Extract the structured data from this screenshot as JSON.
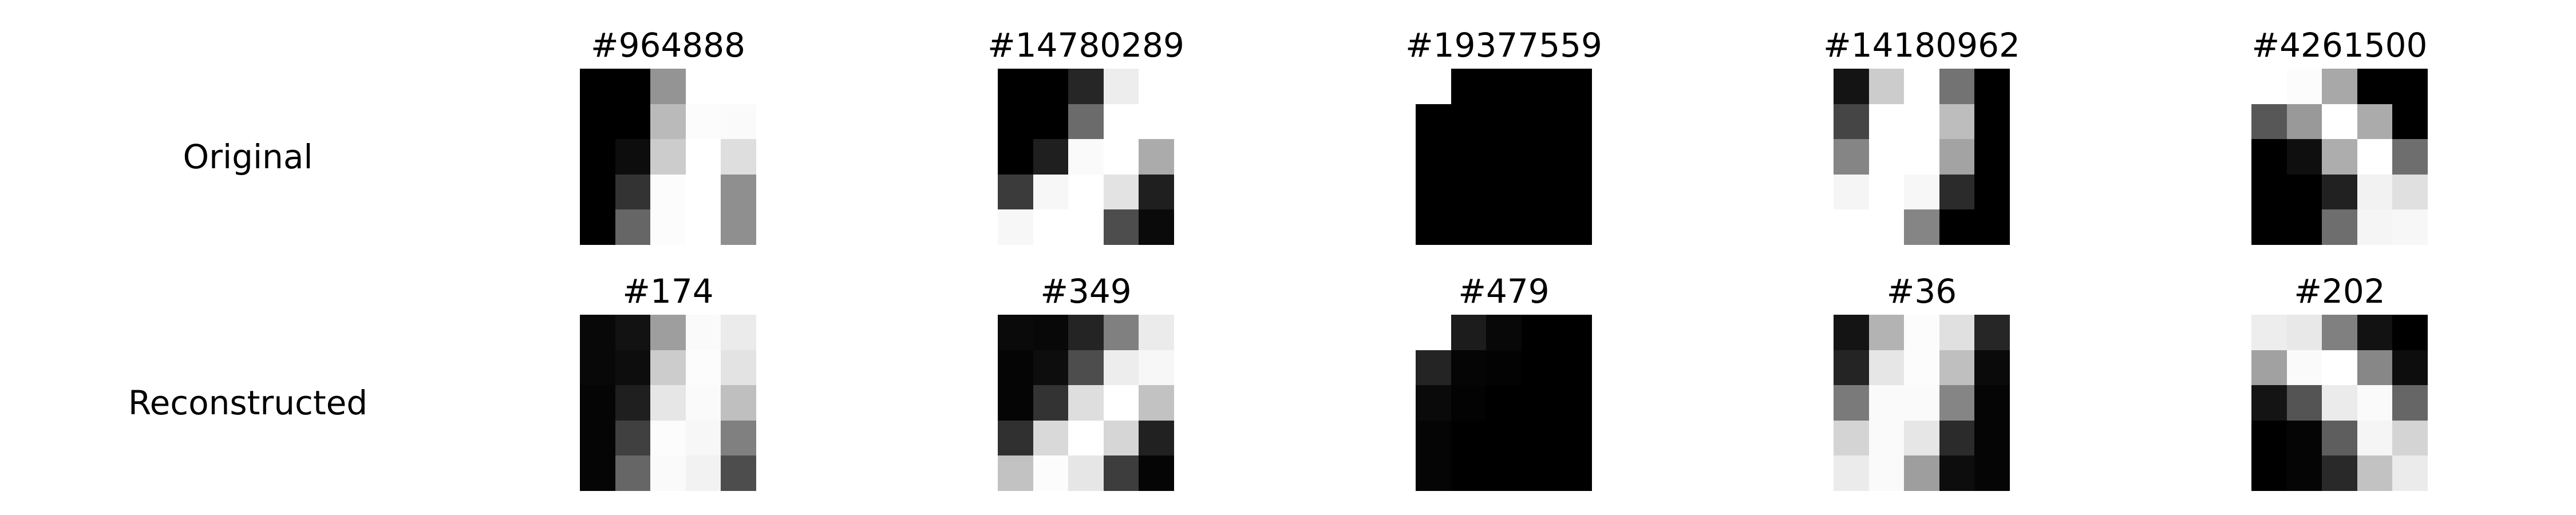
{
  "chart_data": {
    "type": "heatmap",
    "title": "",
    "row_labels": [
      "Original",
      "Reconstructed"
    ],
    "colormap": "gray",
    "value_range": [
      0,
      1
    ],
    "value_meaning": "pixel brightness, 0 = black, 1 = white",
    "grid": "off",
    "rows": [
      {
        "label": "Original",
        "panels": [
          {
            "title": "#964888",
            "pixels": [
              [
                0.0,
                0.0,
                0.58,
                1.0,
                1.0
              ],
              [
                0.0,
                0.0,
                0.73,
                0.99,
                0.98
              ],
              [
                0.0,
                0.05,
                0.8,
                1.0,
                0.87
              ],
              [
                0.0,
                0.2,
                0.99,
                1.0,
                0.56
              ],
              [
                0.0,
                0.4,
                0.99,
                1.0,
                0.56
              ]
            ]
          },
          {
            "title": "#14780289",
            "pixels": [
              [
                0.0,
                0.0,
                0.15,
                0.93,
                1.0
              ],
              [
                0.0,
                0.0,
                0.42,
                1.0,
                1.0
              ],
              [
                0.0,
                0.12,
                0.98,
                1.0,
                0.67
              ],
              [
                0.23,
                0.97,
                1.0,
                0.89,
                0.12
              ],
              [
                0.97,
                1.0,
                1.0,
                0.3,
                0.04
              ]
            ]
          },
          {
            "title": "#19377559",
            "pixels": [
              [
                1.0,
                0.0,
                0.0,
                0.0,
                0.0
              ],
              [
                0.0,
                0.0,
                0.0,
                0.0,
                0.0
              ],
              [
                0.0,
                0.0,
                0.0,
                0.0,
                0.0
              ],
              [
                0.0,
                0.0,
                0.0,
                0.0,
                0.0
              ],
              [
                0.0,
                0.0,
                0.0,
                0.0,
                0.0
              ]
            ]
          },
          {
            "title": "#14180962",
            "pixels": [
              [
                0.08,
                0.8,
                1.0,
                0.45,
                0.0
              ],
              [
                0.27,
                1.0,
                1.0,
                0.74,
                0.0
              ],
              [
                0.52,
                1.0,
                1.0,
                0.64,
                0.0
              ],
              [
                0.96,
                1.0,
                0.97,
                0.17,
                0.0
              ],
              [
                1.0,
                1.0,
                0.52,
                0.0,
                0.0
              ]
            ]
          },
          {
            "title": "#4261500",
            "pixels": [
              [
                1.0,
                0.99,
                0.66,
                0.0,
                0.0
              ],
              [
                0.34,
                0.6,
                1.0,
                0.67,
                0.0
              ],
              [
                0.0,
                0.06,
                0.68,
                1.0,
                0.43
              ],
              [
                0.0,
                0.0,
                0.13,
                0.95,
                0.88
              ],
              [
                0.0,
                0.0,
                0.43,
                0.96,
                0.97
              ]
            ]
          }
        ]
      },
      {
        "label": "Reconstructed",
        "panels": [
          {
            "title": "#174",
            "pixels": [
              [
                0.03,
                0.07,
                0.62,
                0.98,
                0.92
              ],
              [
                0.03,
                0.05,
                0.8,
                0.99,
                0.89
              ],
              [
                0.02,
                0.12,
                0.9,
                0.98,
                0.75
              ],
              [
                0.02,
                0.25,
                0.99,
                0.97,
                0.5
              ],
              [
                0.02,
                0.4,
                0.98,
                0.95,
                0.3
              ]
            ]
          },
          {
            "title": "#349",
            "pixels": [
              [
                0.04,
                0.03,
                0.14,
                0.5,
                0.92
              ],
              [
                0.02,
                0.05,
                0.3,
                0.93,
                0.97
              ],
              [
                0.02,
                0.2,
                0.87,
                1.0,
                0.76
              ],
              [
                0.19,
                0.85,
                1.0,
                0.84,
                0.13
              ],
              [
                0.76,
                0.99,
                0.9,
                0.24,
                0.02
              ]
            ]
          },
          {
            "title": "#479",
            "pixels": [
              [
                1.0,
                0.11,
                0.03,
                0.0,
                0.0
              ],
              [
                0.14,
                0.02,
                0.01,
                0.0,
                0.0
              ],
              [
                0.04,
                0.01,
                0.0,
                0.0,
                0.0
              ],
              [
                0.02,
                0.0,
                0.0,
                0.0,
                0.0
              ],
              [
                0.02,
                0.0,
                0.0,
                0.0,
                0.0
              ]
            ]
          },
          {
            "title": "#36",
            "pixels": [
              [
                0.08,
                0.7,
                0.99,
                0.88,
                0.15
              ],
              [
                0.14,
                0.9,
                0.99,
                0.75,
                0.04
              ],
              [
                0.48,
                0.98,
                0.98,
                0.52,
                0.02
              ],
              [
                0.83,
                0.98,
                0.9,
                0.17,
                0.02
              ],
              [
                0.92,
                0.98,
                0.62,
                0.05,
                0.02
              ]
            ]
          },
          {
            "title": "#202",
            "pixels": [
              [
                0.93,
                0.91,
                0.5,
                0.07,
                0.0
              ],
              [
                0.63,
                0.98,
                1.0,
                0.53,
                0.05
              ],
              [
                0.08,
                0.33,
                0.92,
                0.98,
                0.4
              ],
              [
                0.0,
                0.02,
                0.37,
                0.96,
                0.83
              ],
              [
                0.0,
                0.02,
                0.16,
                0.76,
                0.92
              ]
            ]
          }
        ]
      }
    ]
  }
}
